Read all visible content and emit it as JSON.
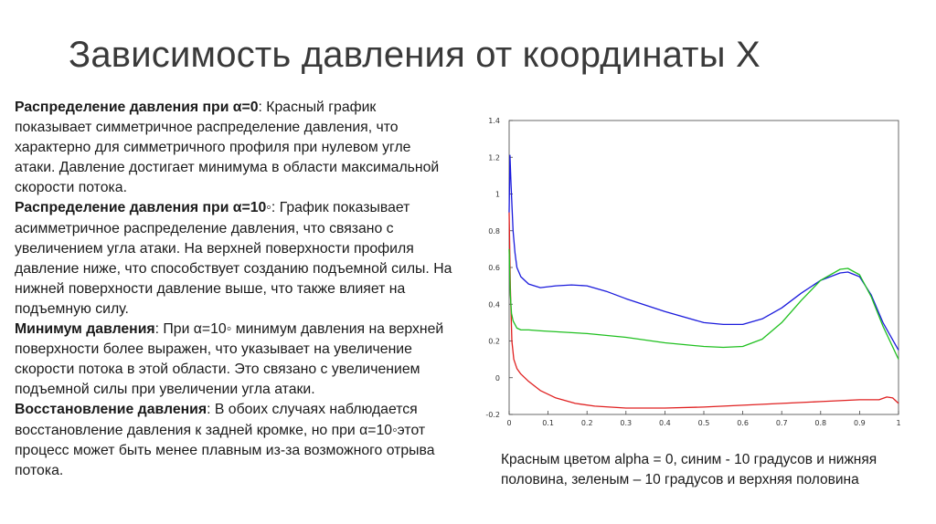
{
  "slide": {
    "title": "Зависимость давления от координаты X",
    "paragraphs": [
      {
        "heading": "Распределение давления при α=0",
        "text": ": Красный график показывает симметричное распределение давления, что характерно для симметричного профиля при нулевом угле атаки. Давление достигает минимума в области максимальной скорости потока."
      },
      {
        "heading": "Распределение давления при α=10◦",
        "text": ": График показывает асимметричное распределение давления, что связано с увеличением угла атаки. На верхней поверхности профиля давление ниже, что способствует созданию подъемной силы. На нижней поверхности давление выше, что также влияет на подъемную силу."
      },
      {
        "heading": "Минимум давления",
        "text": ": При α=10◦ минимум давления на верхней поверхности более выражен, что указывает на увеличение скорости потока в этой области. Это связано с увеличением подъемной силы при увеличении угла атаки."
      },
      {
        "heading": "Восстановление давления",
        "text": ": В обоих случаях наблюдается восстановление давления к задней кромке, но при α=10◦этот процесс может быть менее плавным из-за возможного отрыва потока."
      }
    ],
    "caption": "Красным цветом alpha = 0, синим  - 10 градусов и нижняя половина, зеленым – 10 градусов и верхняя половина"
  },
  "chart_data": {
    "type": "line",
    "xlim": [
      0,
      1
    ],
    "ylim": [
      -0.2,
      1.4
    ],
    "xticks": [
      "0",
      "0.1",
      "0.2",
      "0.3",
      "0.4",
      "0.5",
      "0.6",
      "0.7",
      "0.8",
      "0.9",
      "1"
    ],
    "yticks": [
      "-0.2",
      "0",
      "0.2",
      "0.4",
      "0.6",
      "0.8",
      "1",
      "1.2",
      "1.4"
    ],
    "grid": false,
    "series": [
      {
        "color": "#e02020",
        "x": [
          0.0,
          0.003,
          0.007,
          0.012,
          0.02,
          0.03,
          0.05,
          0.08,
          0.12,
          0.17,
          0.22,
          0.3,
          0.4,
          0.5,
          0.6,
          0.7,
          0.8,
          0.85,
          0.9,
          0.95,
          0.97,
          0.985,
          1.0
        ],
        "y": [
          0.9,
          0.5,
          0.2,
          0.1,
          0.05,
          0.02,
          -0.02,
          -0.07,
          -0.11,
          -0.14,
          -0.155,
          -0.165,
          -0.165,
          -0.16,
          -0.15,
          -0.14,
          -0.13,
          -0.125,
          -0.12,
          -0.12,
          -0.105,
          -0.11,
          -0.14
        ]
      },
      {
        "color": "#1a1adc",
        "x": [
          0.0,
          0.002,
          0.005,
          0.01,
          0.015,
          0.02,
          0.03,
          0.05,
          0.08,
          0.12,
          0.16,
          0.2,
          0.25,
          0.3,
          0.4,
          0.5,
          0.55,
          0.6,
          0.65,
          0.7,
          0.75,
          0.8,
          0.85,
          0.87,
          0.9,
          0.93,
          0.96,
          1.0
        ],
        "y": [
          0.9,
          1.21,
          1.05,
          0.8,
          0.68,
          0.6,
          0.55,
          0.51,
          0.49,
          0.5,
          0.505,
          0.5,
          0.47,
          0.43,
          0.36,
          0.3,
          0.29,
          0.29,
          0.32,
          0.38,
          0.46,
          0.53,
          0.57,
          0.575,
          0.55,
          0.45,
          0.3,
          0.15
        ]
      },
      {
        "color": "#20c020",
        "x": [
          0.0,
          0.003,
          0.006,
          0.01,
          0.015,
          0.02,
          0.03,
          0.05,
          0.08,
          0.12,
          0.2,
          0.3,
          0.4,
          0.5,
          0.55,
          0.6,
          0.65,
          0.7,
          0.75,
          0.8,
          0.85,
          0.87,
          0.9,
          0.93,
          0.96,
          1.0
        ],
        "y": [
          0.7,
          0.45,
          0.35,
          0.31,
          0.29,
          0.27,
          0.26,
          0.26,
          0.255,
          0.25,
          0.24,
          0.22,
          0.19,
          0.17,
          0.165,
          0.17,
          0.21,
          0.3,
          0.42,
          0.53,
          0.59,
          0.595,
          0.56,
          0.44,
          0.28,
          0.1
        ]
      }
    ]
  }
}
